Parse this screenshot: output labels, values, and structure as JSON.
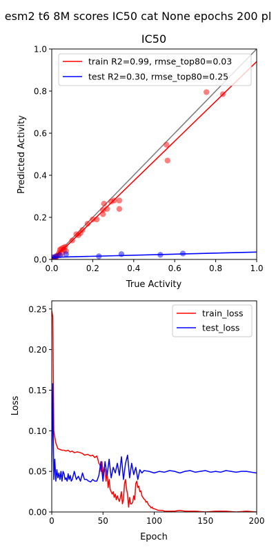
{
  "suptitle": "esm2 t6 8M scores IC50 cat None epochs 200 pl",
  "colors": {
    "train": "#ff0000",
    "test": "#0000ff",
    "identity": "#808080",
    "axis": "#000000"
  },
  "chart_data": [
    {
      "type": "scatter",
      "title": "IC50",
      "xlabel": "True Activity",
      "ylabel": "Predicted Activity",
      "xlim": [
        0.0,
        1.0
      ],
      "ylim": [
        0.0,
        1.0
      ],
      "xticks": [
        "0.0",
        "0.2",
        "0.4",
        "0.6",
        "0.8",
        "1.0"
      ],
      "yticks": [
        "0.0",
        "0.2",
        "0.4",
        "0.6",
        "0.8",
        "1.0"
      ],
      "grid": false,
      "legend_position": "top-left",
      "identity_line": true,
      "series": [
        {
          "name": "train R2=0.99, rmse_top80=0.03",
          "fit": [
            [
              0.0,
              -0.005
            ],
            [
              1.0,
              0.94
            ]
          ],
          "points": [
            [
              0.0,
              0.0
            ],
            [
              0.005,
              0.01
            ],
            [
              0.01,
              0.0
            ],
            [
              0.015,
              0.005
            ],
            [
              0.02,
              0.01
            ],
            [
              0.025,
              0.015
            ],
            [
              0.03,
              0.02
            ],
            [
              0.035,
              0.03
            ],
            [
              0.04,
              0.045
            ],
            [
              0.045,
              0.05
            ],
            [
              0.05,
              0.03
            ],
            [
              0.055,
              0.055
            ],
            [
              0.06,
              0.045
            ],
            [
              0.065,
              0.06
            ],
            [
              0.07,
              0.04
            ],
            [
              0.1,
              0.09
            ],
            [
              0.12,
              0.12
            ],
            [
              0.13,
              0.115
            ],
            [
              0.14,
              0.125
            ],
            [
              0.15,
              0.14
            ],
            [
              0.175,
              0.17
            ],
            [
              0.2,
              0.19
            ],
            [
              0.22,
              0.19
            ],
            [
              0.25,
              0.215
            ],
            [
              0.25,
              0.235
            ],
            [
              0.255,
              0.265
            ],
            [
              0.27,
              0.24
            ],
            [
              0.29,
              0.275
            ],
            [
              0.305,
              0.28
            ],
            [
              0.33,
              0.28
            ],
            [
              0.33,
              0.24
            ],
            [
              0.56,
              0.545
            ],
            [
              0.565,
              0.47
            ],
            [
              0.755,
              0.795
            ],
            [
              0.835,
              0.785
            ]
          ]
        },
        {
          "name": "test R2=0.30, rmse_top80=0.25",
          "fit": [
            [
              0.0,
              0.01
            ],
            [
              1.0,
              0.035
            ]
          ],
          "points": [
            [
              0.01,
              0.01
            ],
            [
              0.02,
              0.015
            ],
            [
              0.04,
              0.02
            ],
            [
              0.07,
              0.025
            ],
            [
              0.23,
              0.015
            ],
            [
              0.34,
              0.025
            ],
            [
              0.53,
              0.022
            ],
            [
              0.64,
              0.028
            ]
          ]
        }
      ]
    },
    {
      "type": "line",
      "title": "",
      "xlabel": "Epoch",
      "ylabel": "Loss",
      "xlim": [
        0,
        200
      ],
      "ylim": [
        0.0,
        0.26
      ],
      "xticks": [
        "0",
        "50",
        "100",
        "150",
        "200"
      ],
      "yticks": [
        "0.00",
        "0.05",
        "0.10",
        "0.15",
        "0.20",
        "0.25"
      ],
      "grid": false,
      "legend_position": "top-right",
      "series": [
        {
          "name": "train_loss",
          "x": [
            0,
            1,
            2,
            3,
            4,
            6,
            8,
            10,
            12,
            14,
            16,
            18,
            20,
            22,
            25,
            28,
            30,
            32,
            35,
            38,
            40,
            42,
            44,
            45,
            46,
            47,
            48,
            49,
            50,
            51,
            52,
            53,
            54,
            55,
            56,
            57,
            58,
            59,
            60,
            61,
            62,
            63,
            64,
            65,
            66,
            67,
            68,
            69,
            70,
            71,
            72,
            73,
            74,
            75,
            76,
            77,
            78,
            79,
            80,
            81,
            82,
            83,
            84,
            85,
            86,
            87,
            88,
            89,
            90,
            91,
            92,
            93,
            94,
            95,
            96,
            97,
            98,
            99,
            100,
            102,
            104,
            106,
            108,
            110,
            115,
            120,
            125,
            130,
            140,
            150,
            160,
            170,
            180,
            190,
            200
          ],
          "y": [
            0.248,
            0.24,
            0.1,
            0.092,
            0.085,
            0.078,
            0.077,
            0.076,
            0.076,
            0.075,
            0.076,
            0.074,
            0.075,
            0.073,
            0.074,
            0.073,
            0.072,
            0.07,
            0.071,
            0.069,
            0.07,
            0.067,
            0.069,
            0.065,
            0.06,
            0.058,
            0.05,
            0.062,
            0.045,
            0.055,
            0.052,
            0.038,
            0.05,
            0.03,
            0.04,
            0.028,
            0.025,
            0.022,
            0.025,
            0.018,
            0.022,
            0.015,
            0.02,
            0.016,
            0.013,
            0.018,
            0.025,
            0.01,
            0.016,
            0.035,
            0.04,
            0.028,
            0.022,
            0.006,
            0.018,
            0.01,
            0.01,
            0.012,
            0.02,
            0.015,
            0.035,
            0.038,
            0.03,
            0.032,
            0.025,
            0.026,
            0.02,
            0.018,
            0.016,
            0.015,
            0.012,
            0.013,
            0.01,
            0.008,
            0.007,
            0.005,
            0.006,
            0.004,
            0.004,
            0.003,
            0.002,
            0.002,
            0.002,
            0.001,
            0.001,
            0.001,
            0.002,
            0.001,
            0.001,
            0.0,
            0.001,
            0.001,
            0.0,
            0.001,
            0.0
          ]
        },
        {
          "name": "test_loss",
          "x": [
            0,
            1,
            2,
            3,
            4,
            5,
            6,
            7,
            8,
            9,
            10,
            11,
            12,
            13,
            14,
            15,
            16,
            17,
            18,
            19,
            20,
            22,
            24,
            26,
            28,
            30,
            32,
            34,
            36,
            38,
            40,
            42,
            44,
            46,
            48,
            50,
            52,
            54,
            56,
            58,
            60,
            62,
            64,
            66,
            68,
            70,
            72,
            74,
            76,
            78,
            80,
            82,
            84,
            86,
            88,
            90,
            95,
            100,
            105,
            110,
            115,
            120,
            125,
            130,
            135,
            140,
            145,
            150,
            155,
            160,
            165,
            170,
            175,
            180,
            185,
            190,
            195,
            200
          ],
          "y": [
            0.05,
            0.158,
            0.04,
            0.065,
            0.038,
            0.052,
            0.042,
            0.048,
            0.04,
            0.05,
            0.038,
            0.05,
            0.047,
            0.04,
            0.042,
            0.038,
            0.047,
            0.04,
            0.045,
            0.038,
            0.04,
            0.05,
            0.04,
            0.044,
            0.038,
            0.048,
            0.04,
            0.04,
            0.038,
            0.037,
            0.04,
            0.038,
            0.038,
            0.045,
            0.062,
            0.038,
            0.062,
            0.045,
            0.065,
            0.042,
            0.055,
            0.048,
            0.06,
            0.045,
            0.068,
            0.04,
            0.06,
            0.07,
            0.042,
            0.06,
            0.046,
            0.055,
            0.04,
            0.052,
            0.048,
            0.051,
            0.05,
            0.048,
            0.05,
            0.049,
            0.051,
            0.05,
            0.048,
            0.05,
            0.051,
            0.049,
            0.05,
            0.051,
            0.049,
            0.05,
            0.049,
            0.051,
            0.05,
            0.049,
            0.05,
            0.05,
            0.049,
            0.048
          ]
        }
      ]
    }
  ]
}
